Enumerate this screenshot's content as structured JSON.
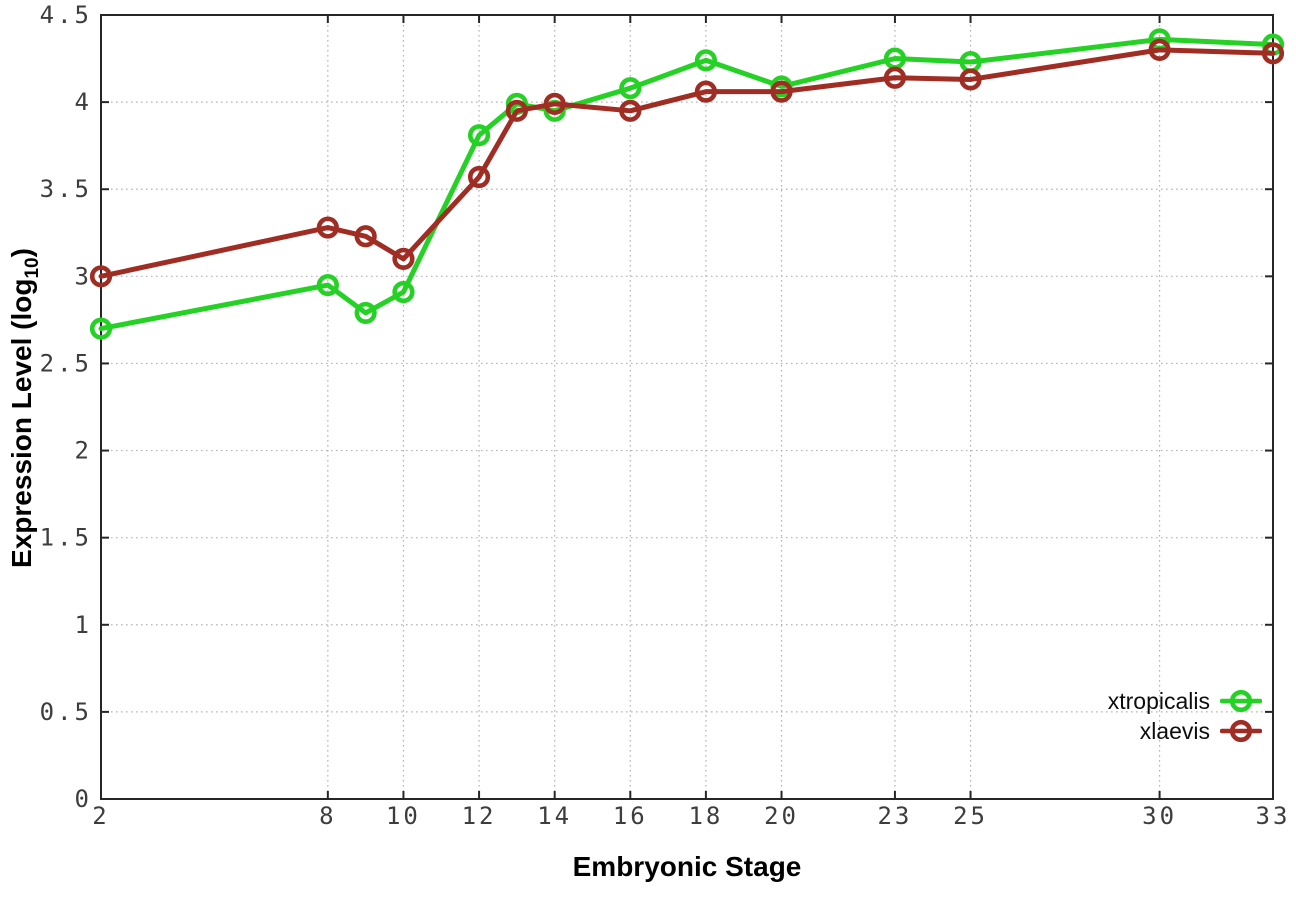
{
  "chart_data": {
    "type": "line",
    "title": "",
    "xlabel": "Embryonic Stage",
    "ylabel": "Expression Level (log10)",
    "ylabel_parts": {
      "prefix": "Expression Level (log",
      "sub": "10",
      "suffix": ")"
    },
    "x": [
      2,
      8,
      9,
      10,
      12,
      13,
      14,
      16,
      18,
      20,
      23,
      25,
      30,
      33
    ],
    "series": [
      {
        "name": "xtropicalis",
        "color": "#25d125",
        "values": [
          2.7,
          2.95,
          2.79,
          2.91,
          3.81,
          3.99,
          3.95,
          4.08,
          4.24,
          4.09,
          4.25,
          4.23,
          4.36,
          4.33
        ]
      },
      {
        "name": "xlaevis",
        "color": "#a02d24",
        "values": [
          3.0,
          3.28,
          3.23,
          3.1,
          3.57,
          3.95,
          3.99,
          3.95,
          4.06,
          4.06,
          4.14,
          4.13,
          4.3,
          4.28
        ]
      }
    ],
    "xlim": [
      2,
      33
    ],
    "ylim": [
      0,
      4.5
    ],
    "xticks": {
      "values": [
        2,
        8,
        10,
        12,
        14,
        16,
        18,
        20,
        23,
        25,
        30,
        33
      ],
      "labels": [
        "2",
        "8",
        "10",
        "12",
        "14",
        "16",
        "18",
        "20",
        "23",
        "25",
        "30",
        "33"
      ]
    },
    "yticks": {
      "values": [
        0,
        0.5,
        1,
        1.5,
        2,
        2.5,
        3,
        3.5,
        4,
        4.5
      ],
      "labels": [
        "0",
        "0.5",
        "1",
        "1.5",
        "2",
        "2.5",
        "3",
        "3.5",
        "4",
        "4.5"
      ]
    },
    "grid": true,
    "legend_position": "bottom-right",
    "colors": {
      "background": "#ffffff",
      "grid": "#b4b4b4",
      "axis": "#262626",
      "tick_text": "#3d3d3d"
    }
  }
}
